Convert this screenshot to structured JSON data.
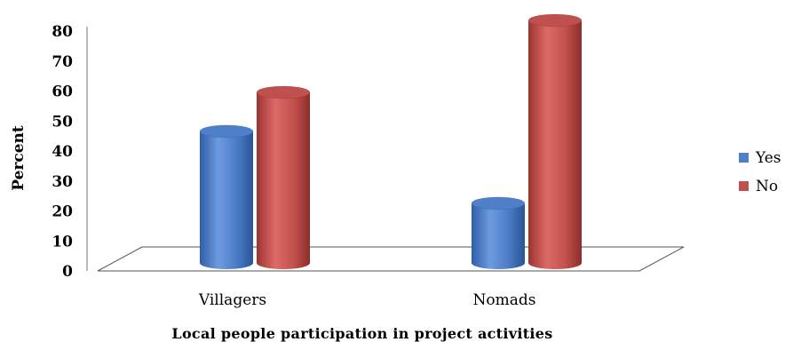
{
  "chart_data": {
    "type": "bar",
    "title": "",
    "xlabel": "Local people participation in project activities",
    "ylabel": "Percent",
    "categories": [
      "Villagers",
      "Nomads"
    ],
    "series": [
      {
        "name": "Yes",
        "values": [
          43,
          19
        ],
        "color": "#4f7fc9"
      },
      {
        "name": "No",
        "values": [
          56,
          80
        ],
        "color": "#c0504d"
      }
    ],
    "yticks": [
      "0",
      "10",
      "20",
      "30",
      "40",
      "50",
      "60",
      "70",
      "80"
    ],
    "ylim": [
      0,
      80
    ],
    "grid": false,
    "legend_position": "right",
    "style": "3d-cylinder"
  }
}
